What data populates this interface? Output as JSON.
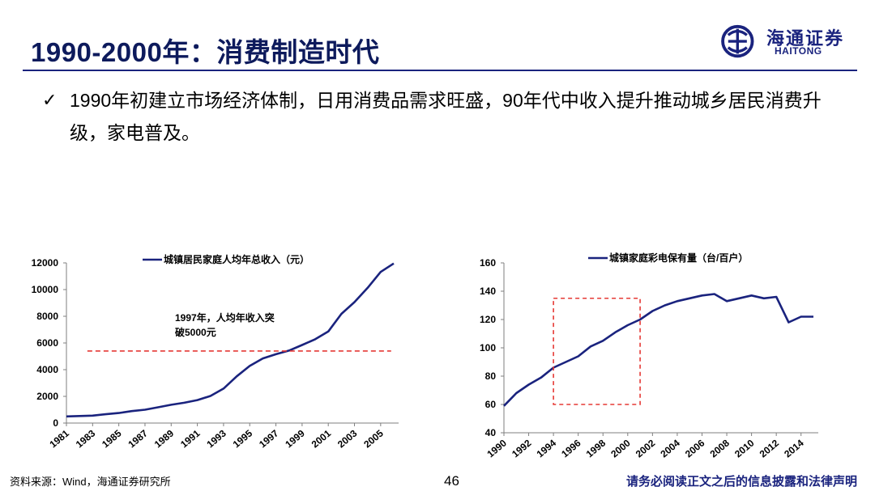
{
  "header": {
    "title": "1990-2000年：消费制造时代",
    "logo_cn": "海通证券",
    "logo_en": "HAITONG"
  },
  "bullet": {
    "check_icon": "✓",
    "text": "1990年初建立市场经济体制，日用消费品需求旺盛，90年代中收入提升推动城乡居民消费升级，家电普及。"
  },
  "footer": {
    "source": "资料来源：Wind，海通证券研究所",
    "page": "46",
    "disclaimer": "请务必阅读正文之后的信息披露和法律声明"
  },
  "colors": {
    "brand": "#1a237e",
    "series": "#1a237e",
    "annotation": "#e53935"
  },
  "chart_data": [
    {
      "type": "line",
      "title": "",
      "legend": "城镇居民家庭人均年总收入（元）",
      "legend_position": "top",
      "x": [
        1981,
        1982,
        1983,
        1984,
        1985,
        1986,
        1987,
        1988,
        1989,
        1990,
        1991,
        1992,
        1993,
        1994,
        1995,
        1996,
        1997,
        1998,
        1999,
        2000,
        2001,
        2002,
        2003,
        2004,
        2005,
        2006
      ],
      "values": [
        500,
        530,
        560,
        660,
        750,
        900,
        1000,
        1180,
        1370,
        1520,
        1720,
        2030,
        2580,
        3500,
        4280,
        4840,
        5160,
        5430,
        5850,
        6280,
        6860,
        8180,
        9060,
        10130,
        11320,
        11960
      ],
      "x_tick_labels": [
        "1981",
        "1983",
        "1985",
        "1987",
        "1989",
        "1991",
        "1993",
        "1995",
        "1997",
        "1999",
        "2001",
        "2003",
        "2005"
      ],
      "y_tick_labels": [
        "0",
        "2000",
        "4000",
        "6000",
        "8000",
        "10000",
        "12000"
      ],
      "ylim": [
        0,
        12000
      ],
      "reference_line_y": 5400,
      "annotation": [
        "1997年，人均年收入突",
        "破5000元"
      ]
    },
    {
      "type": "line",
      "title": "",
      "legend": "城镇家庭彩电保有量（台/百户）",
      "legend_position": "top",
      "x": [
        1990,
        1991,
        1992,
        1993,
        1994,
        1995,
        1996,
        1997,
        1998,
        1999,
        2000,
        2001,
        2002,
        2003,
        2004,
        2005,
        2006,
        2007,
        2008,
        2009,
        2010,
        2011,
        2012,
        2013,
        2014,
        2015
      ],
      "values": [
        59,
        68,
        74,
        79,
        86,
        90,
        94,
        101,
        105,
        111,
        116,
        120,
        126,
        130,
        133,
        135,
        137,
        138,
        133,
        135,
        137,
        135,
        136,
        118,
        122,
        122
      ],
      "x_tick_labels": [
        "1990",
        "1992",
        "1994",
        "1996",
        "1998",
        "2000",
        "2002",
        "2004",
        "2006",
        "2008",
        "2010",
        "2012",
        "2014"
      ],
      "y_tick_labels": [
        "40",
        "60",
        "80",
        "100",
        "120",
        "140",
        "160"
      ],
      "ylim": [
        40,
        160
      ],
      "highlight_box_x": [
        1994,
        2001
      ],
      "highlight_box_y": [
        60,
        135
      ]
    }
  ]
}
